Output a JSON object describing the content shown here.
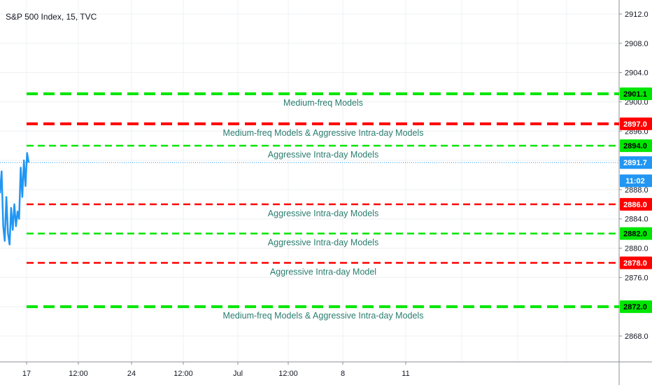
{
  "chart_data": {
    "type": "line",
    "title": "S&P 500 Index, 15, TVC",
    "y_axis": {
      "range": [
        2866,
        2914
      ],
      "ticks": [
        2868.0,
        2872.0,
        2876.0,
        2880.0,
        2884.0,
        2888.0,
        2892.0,
        2896.0,
        2900.0,
        2904.0,
        2908.0,
        2912.0
      ],
      "tick_labels": [
        "2868.0",
        "2872.0",
        "2876.0",
        "2880.0",
        "2884.0",
        "2888.0",
        "2892.0",
        "2896.0",
        "2900.0",
        "2904.0",
        "2908.0",
        "2912.0"
      ],
      "position": "right"
    },
    "x_axis": {
      "tick_labels": [
        "17",
        "12:00",
        "24",
        "12:00",
        "Jul",
        "12:00",
        "8",
        "11"
      ]
    },
    "grid": true,
    "series": [
      {
        "values": [
          2887.5,
          2890.5,
          2883.0,
          2881.0,
          2887.0,
          2882.0,
          2880.5,
          2885.5,
          2882.5,
          2886.0,
          2883.0,
          2885.0,
          2884.0,
          2891.0,
          2887.0,
          2892.0,
          2888.5,
          2893.0,
          2891.7
        ],
        "color": "#2196f3"
      }
    ],
    "last_price": {
      "value": 2891.7,
      "label": "2891.7",
      "countdown": "11:02",
      "color": "#2196f3"
    },
    "levels": [
      {
        "value": 2901.1,
        "label": "2901.1",
        "annotation": "Medium-freq Models",
        "color": "#00e600",
        "thick": true
      },
      {
        "value": 2897.0,
        "label": "2897.0",
        "annotation": "Medium-freq Models & Aggressive Intra-day Models",
        "color": "#ff0000",
        "thick": true
      },
      {
        "value": 2894.0,
        "label": "2894.0",
        "annotation": "Aggressive Intra-day Models",
        "color": "#00e600",
        "thick": false
      },
      {
        "value": 2886.0,
        "label": "2886.0",
        "annotation": "Aggressive Intra-day Models",
        "color": "#ff0000",
        "thick": false
      },
      {
        "value": 2882.0,
        "label": "2882.0",
        "annotation": "Aggressive Intra-day Models",
        "color": "#00e600",
        "thick": false
      },
      {
        "value": 2878.0,
        "label": "2878.0",
        "annotation": "Aggressive Intra-day Model",
        "color": "#ff0000",
        "thick": false
      },
      {
        "value": 2872.0,
        "label": "2872.0",
        "annotation": "Medium-freq Models & Aggressive Intra-day Models",
        "color": "#00e600",
        "thick": true
      }
    ]
  }
}
